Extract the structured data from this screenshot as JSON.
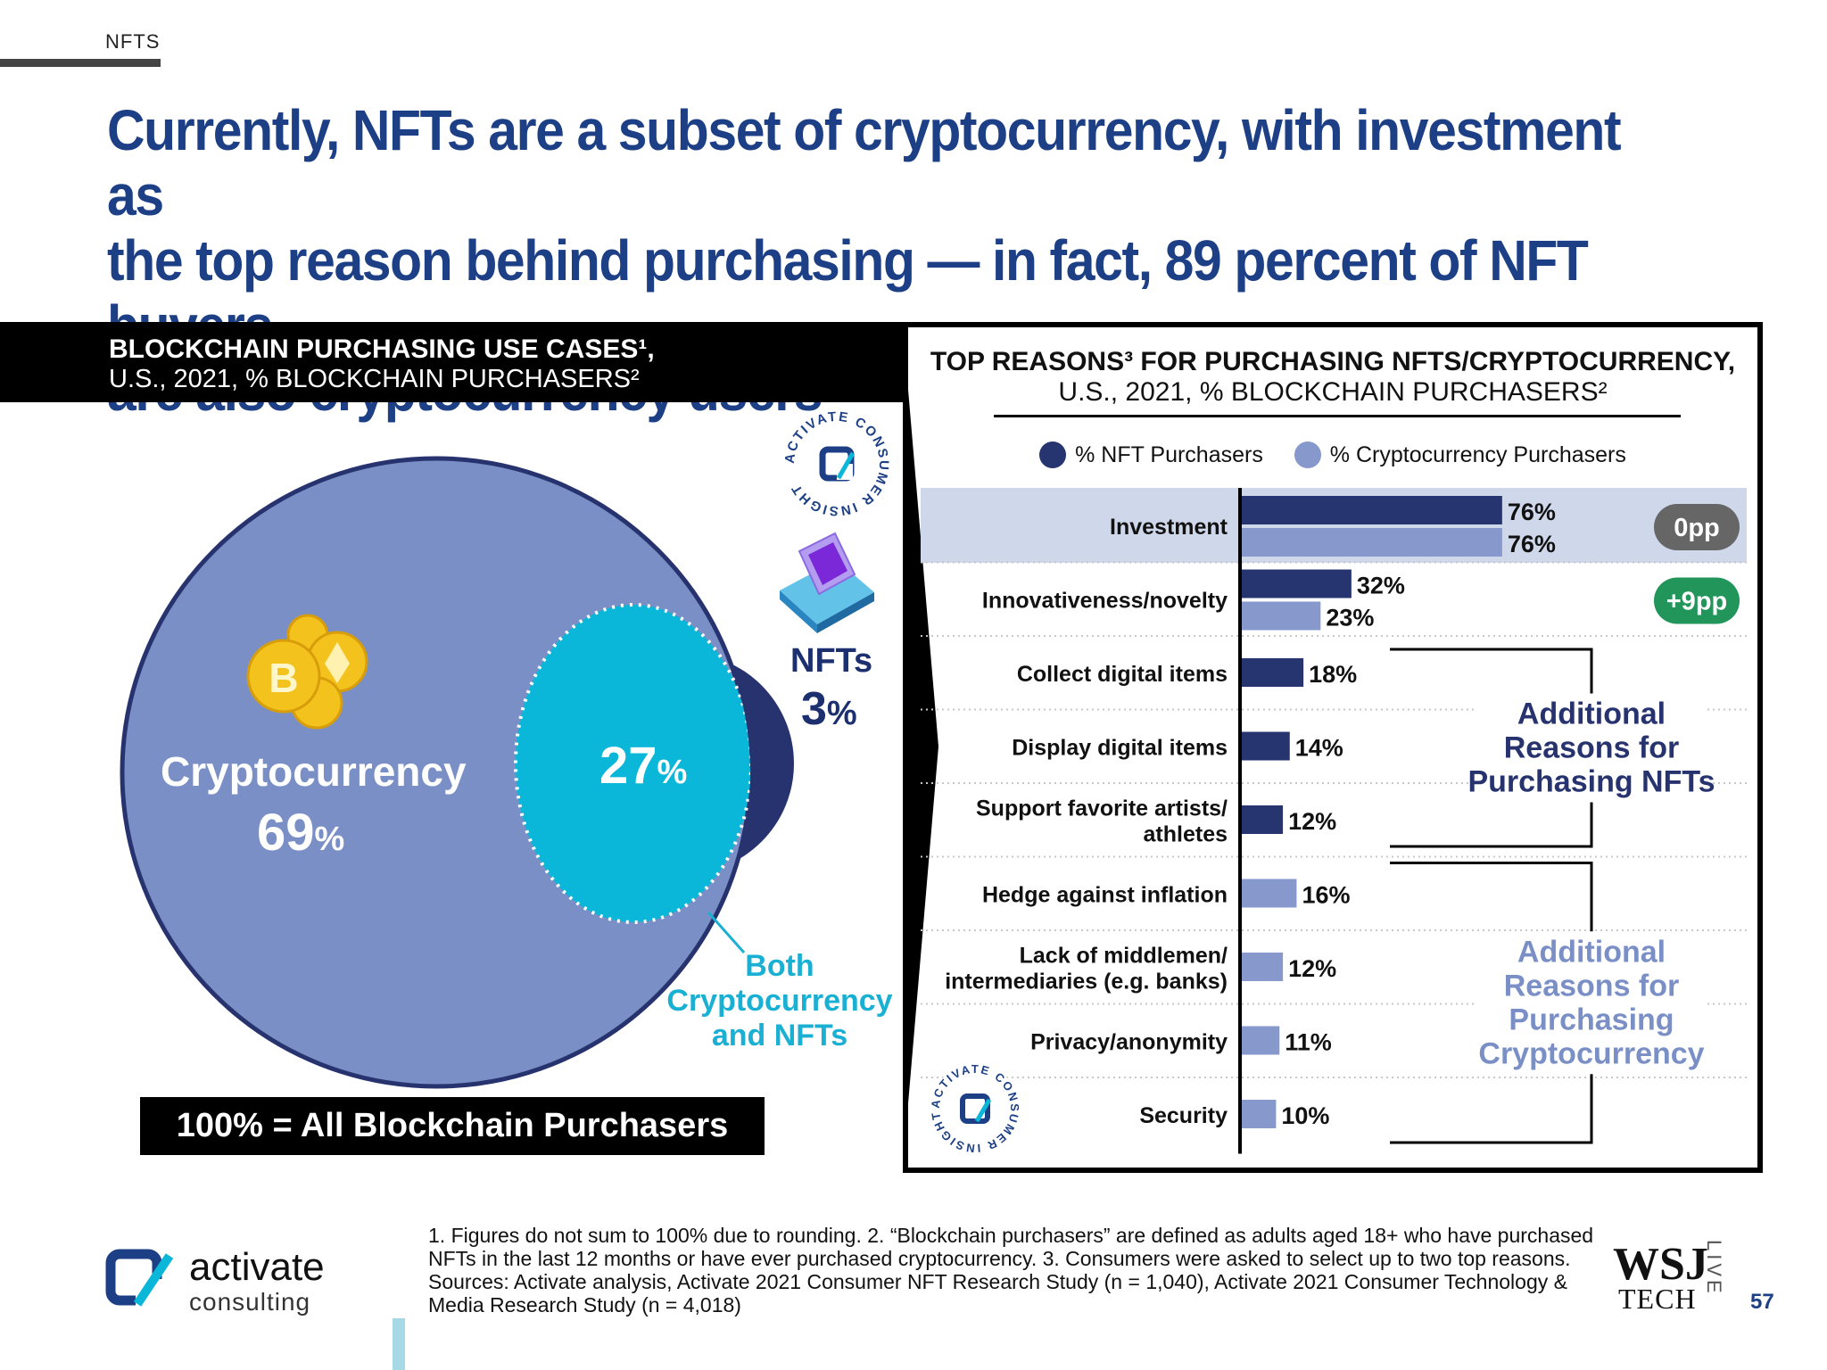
{
  "section_tag": "NFTS",
  "headline": {
    "line1": "Currently, NFTs are a subset of cryptocurrency, with investment as",
    "line2": "the top reason behind purchasing — in fact, 89 percent of NFT buyers",
    "line3": "are also cryptocurrency users"
  },
  "colors": {
    "headline_blue": "#1c3f85",
    "crypto_circle": "#7a8fc6",
    "nft_navy": "#27336e",
    "overlap_cyan": "#0ab7d8",
    "crypto_bar": "#8698cc",
    "nft_bar": "#26346f",
    "highlight_row": "#cfd7ea",
    "zero_badge": "#666666",
    "plus_badge": "#21955a"
  },
  "left_panel": {
    "title_line1": "BLOCKCHAIN PURCHASING USE CASES¹,",
    "title_line2": "U.S., 2021, % BLOCKCHAIN PURCHASERS²",
    "base_note": "100% = All Blockchain Purchasers",
    "badge_text": "ACTIVATE CONSUMER INSIGHT"
  },
  "right_panel": {
    "title_line1": "TOP REASONS³ FOR PURCHASING NFTS/CRYPTOCURRENCY,",
    "title_line2": "U.S., 2021, % BLOCKCHAIN PURCHASERS²",
    "legend": {
      "nft": "% NFT Purchasers",
      "crypto": "% Cryptocurrency Purchasers"
    },
    "group_nft_label": [
      "Additional",
      "Reasons for",
      "Purchasing NFTs"
    ],
    "group_crypto_label": [
      "Additional",
      "Reasons for",
      "Purchasing",
      "Cryptocurrency"
    ]
  },
  "chart_data": [
    {
      "type": "venn",
      "title": "BLOCKCHAIN PURCHASING USE CASES¹, U.S., 2021, % BLOCKCHAIN PURCHASERS²",
      "sets": [
        {
          "name": "Cryptocurrency",
          "value": 69,
          "unit": "%"
        },
        {
          "name": "Both Cryptocurrency and NFTs",
          "value": 27,
          "unit": "%"
        },
        {
          "name": "NFTs",
          "value": 3,
          "unit": "%"
        }
      ]
    },
    {
      "type": "bar",
      "orientation": "horizontal",
      "title": "TOP REASONS³ FOR PURCHASING NFTS/CRYPTOCURRENCY, U.S., 2021, % BLOCKCHAIN PURCHASERS²",
      "unit": "%",
      "xlim": [
        0,
        100
      ],
      "rows": [
        {
          "label": [
            "Investment"
          ],
          "nft": 76,
          "crypto": 76,
          "diff": "0pp"
        },
        {
          "label": [
            "Innovativeness/novelty"
          ],
          "nft": 32,
          "crypto": 23,
          "diff": "+9pp"
        },
        {
          "label": [
            "Collect digital items"
          ],
          "nft": 18
        },
        {
          "label": [
            "Display digital items"
          ],
          "nft": 14
        },
        {
          "label": [
            "Support favorite artists/",
            "athletes"
          ],
          "nft": 12
        },
        {
          "label": [
            "Hedge against inflation"
          ],
          "crypto": 16
        },
        {
          "label": [
            "Lack of middlemen/",
            "intermediaries (e.g. banks)"
          ],
          "crypto": 12
        },
        {
          "label": [
            "Privacy/anonymity"
          ],
          "crypto": 11
        },
        {
          "label": [
            "Security"
          ],
          "crypto": 10
        }
      ]
    }
  ],
  "footnote": {
    "line1": "1. Figures do not sum to 100% due to rounding.  2. “Blockchain purchasers” are defined as adults aged 18+ who have purchased",
    "line2": "NFTs in the last 12 months or have ever purchased cryptocurrency.  3. Consumers were asked to select up to two top reasons.",
    "line3": "Sources: Activate analysis, Activate 2021 Consumer NFT Research Study (n = 1,040), Activate 2021 Consumer Technology &",
    "line4": "Media Research Study (n = 4,018)"
  },
  "branding": {
    "logo_name": "activate",
    "logo_sub": "consulting",
    "partner_main": "WSJ",
    "partner_sub": "TECH",
    "partner_live": "LIVE",
    "page_number": "57"
  }
}
